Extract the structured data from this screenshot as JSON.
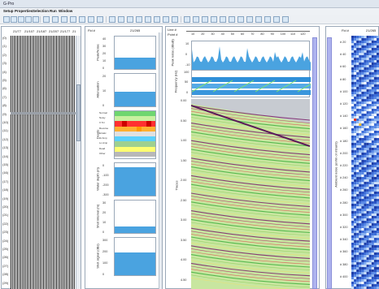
{
  "window": {
    "title": "G-Pro"
  },
  "menubar": {
    "items": [
      "Setup",
      "Properties",
      "Selection",
      "Run",
      "Window"
    ]
  },
  "toolbar": {
    "button_count": 32
  },
  "panel1": {
    "header_labels": [
      "21/77",
      "21/107",
      "21/187",
      "21/207",
      "21/177",
      "21"
    ],
    "row_labels": [
      "(0)",
      "(1)",
      "(2)",
      "(3)",
      "(4)",
      "(5)",
      "(6)",
      "(7)",
      "(8)",
      "(9)",
      "(10)",
      "(11)",
      "(12)",
      "(13)",
      "(14)",
      "(15)",
      "(16)",
      "(17)",
      "(18)",
      "(19)",
      "(20)",
      "(21)",
      "(22)",
      "(23)",
      "(24)",
      "(25)",
      "(26)",
      "(27)",
      "(28)",
      "(29)"
    ]
  },
  "panel2": {
    "field_label": "Fld #",
    "field_value": "21/265",
    "charts": [
      {
        "ylabel": "Peak/Noise",
        "ticks": [
          "40",
          "30",
          "20",
          "10",
          "0"
        ]
      },
      {
        "ylabel": "Attenuation",
        "ticks": [
          "20",
          "10",
          "0"
        ]
      },
      {
        "ylabel": "Deads",
        "legend": [
          "Normal",
          "Noisy",
          "X Trc",
          "Reverse",
          "Erratic",
          "Hi Amp",
          "Lo Amp",
          "Dead",
          "Other"
        ]
      },
      {
        "ylabel": "Water depth (m)",
        "ticks": [
          "0",
          "-100",
          "-200",
          "-300"
        ]
      },
      {
        "ylabel": "Shot interval (m)",
        "ticks": [
          "30",
          "20",
          "10",
          "0"
        ]
      },
      {
        "ylabel": "Shot signal (dBs)",
        "ticks": [
          "300",
          "200",
          "100",
          "0"
        ]
      }
    ]
  },
  "panel3": {
    "line_label": "Line #",
    "point_label": "Point #",
    "x_ticks": [
      "10",
      "20",
      "30",
      "40",
      "50",
      "60",
      "70",
      "80",
      "90",
      "100",
      "110",
      "120"
    ],
    "ylabel_top": "Peak noise (dBuB)",
    "ylabel_mid": "Frequency (Hz)",
    "ylabel_main": "Traces",
    "time_ticks": [
      "0.00",
      "0.50",
      "1.00",
      "1.50",
      "2.00",
      "2.50",
      "3.00",
      "3.50",
      "4.00",
      "4.50"
    ],
    "top_ticks": [
      "10",
      "0",
      "-10"
    ],
    "mid_ticks": [
      "100",
      "50",
      "0"
    ]
  },
  "panel4": {
    "field_label": "Fld #",
    "header_value": "21/265",
    "ylabel": "Ambient noise (uV/m or mbar/s)",
    "row_ticks": [
      "# 20",
      "# 40",
      "# 60",
      "# 80",
      "# 100",
      "# 120",
      "# 140",
      "# 160",
      "# 180",
      "# 200",
      "# 220",
      "# 240",
      "# 260",
      "# 280",
      "# 300",
      "# 320",
      "# 340",
      "# 360",
      "# 380",
      "# 400"
    ]
  }
}
